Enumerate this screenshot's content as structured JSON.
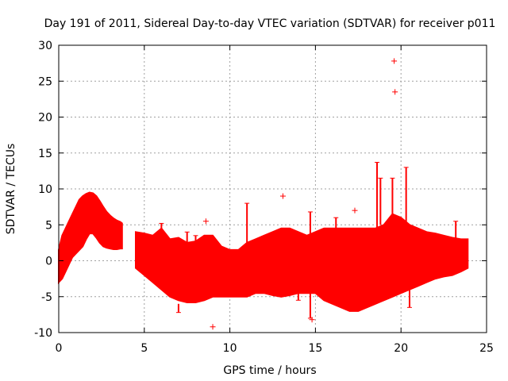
{
  "chart_data": {
    "type": "scatter",
    "title": "Day 191 of 2011, Sidereal Day-to-day VTEC variation (SDTVAR) for receiver p011",
    "xlabel": "GPS time / hours",
    "ylabel": "SDTVAR / TECUs",
    "xlim": [
      0,
      25
    ],
    "ylim": [
      -10,
      30
    ],
    "xticks": [
      0,
      5,
      10,
      15,
      20,
      25
    ],
    "yticks": [
      -10,
      -5,
      0,
      5,
      10,
      15,
      20,
      25,
      30
    ],
    "grid": true,
    "marker": "+",
    "color": "#ff0000",
    "envelope": {
      "description": "dense red band of observations: upper and lower bounds by hour",
      "segments": [
        {
          "x": [
            0.0,
            0.2,
            0.4,
            0.6,
            0.8,
            1.0,
            1.2,
            1.4,
            1.6,
            1.8,
            2.0,
            2.2,
            2.4,
            2.6,
            2.8,
            3.0,
            3.2,
            3.4,
            3.6,
            3.7
          ],
          "upper": [
            1.5,
            3.5,
            4.5,
            5.5,
            6.5,
            7.5,
            8.5,
            9.0,
            9.3,
            9.5,
            9.4,
            9.0,
            8.3,
            7.5,
            6.8,
            6.3,
            5.9,
            5.6,
            5.4,
            5.2
          ],
          "lower": [
            -3.0,
            -2.5,
            -1.5,
            -0.5,
            0.5,
            1.0,
            1.5,
            2.0,
            3.0,
            3.8,
            3.8,
            3.2,
            2.5,
            2.0,
            1.8,
            1.7,
            1.6,
            1.6,
            1.7,
            1.7
          ]
        },
        {
          "x": [
            4.5,
            5.0,
            5.5,
            6.0,
            6.5,
            7.0,
            7.5,
            8.0,
            8.5,
            9.0,
            9.5,
            10.0,
            10.5,
            11.0,
            11.5,
            12.0,
            12.5,
            13.0,
            13.5,
            14.0,
            14.5,
            15.0,
            15.5,
            16.0,
            16.5,
            17.0,
            17.5,
            18.0,
            18.5,
            19.0,
            19.5,
            20.0,
            20.5,
            21.0,
            21.5,
            22.0,
            22.5,
            23.0,
            23.5,
            23.9
          ],
          "upper": [
            4.0,
            3.8,
            3.5,
            4.5,
            3.0,
            3.2,
            2.5,
            2.7,
            3.5,
            3.5,
            2.0,
            1.5,
            1.5,
            2.5,
            3.0,
            3.5,
            4.0,
            4.5,
            4.5,
            4.0,
            3.5,
            4.0,
            4.5,
            4.5,
            4.5,
            4.5,
            4.5,
            4.5,
            4.5,
            5.0,
            6.5,
            6.0,
            5.0,
            4.5,
            4.0,
            3.8,
            3.5,
            3.2,
            3.0,
            3.0
          ],
          "lower": [
            -1.0,
            -2.0,
            -3.0,
            -4.0,
            -5.0,
            -5.5,
            -5.8,
            -5.8,
            -5.5,
            -5.0,
            -5.0,
            -5.0,
            -5.0,
            -5.0,
            -4.5,
            -4.5,
            -4.8,
            -5.0,
            -4.8,
            -4.5,
            -4.5,
            -4.5,
            -5.5,
            -6.0,
            -6.5,
            -7.0,
            -7.0,
            -6.5,
            -6.0,
            -5.5,
            -5.0,
            -4.5,
            -4.0,
            -3.5,
            -3.0,
            -2.5,
            -2.2,
            -2.0,
            -1.5,
            -1.0
          ]
        }
      ]
    },
    "spikes": [
      {
        "x": 6.0,
        "y1": 0.5,
        "y2": 5.2
      },
      {
        "x": 7.0,
        "y1": -6.0,
        "y2": -7.2
      },
      {
        "x": 7.5,
        "y1": 2.5,
        "y2": 4.0
      },
      {
        "x": 8.0,
        "y1": 2.5,
        "y2": 3.5
      },
      {
        "x": 11.0,
        "y1": 2.5,
        "y2": 8.0
      },
      {
        "x": 14.0,
        "y1": -4.5,
        "y2": -5.5
      },
      {
        "x": 14.7,
        "y1": 3.5,
        "y2": 6.8
      },
      {
        "x": 14.7,
        "y1": -4.5,
        "y2": -8.0
      },
      {
        "x": 16.2,
        "y1": 4.0,
        "y2": 6.0
      },
      {
        "x": 18.6,
        "y1": 4.5,
        "y2": 13.7
      },
      {
        "x": 18.8,
        "y1": 5.0,
        "y2": 11.5
      },
      {
        "x": 19.5,
        "y1": 6.0,
        "y2": 11.5
      },
      {
        "x": 20.3,
        "y1": 5.0,
        "y2": 13.0
      },
      {
        "x": 20.5,
        "y1": -4.0,
        "y2": -6.5
      },
      {
        "x": 23.2,
        "y1": 3.0,
        "y2": 5.5
      }
    ],
    "outliers": [
      {
        "x": 8.6,
        "y": 5.5
      },
      {
        "x": 9.0,
        "y": -9.2
      },
      {
        "x": 13.1,
        "y": 9.0
      },
      {
        "x": 14.8,
        "y": -8.2
      },
      {
        "x": 17.3,
        "y": 7.0
      },
      {
        "x": 19.6,
        "y": 27.8
      },
      {
        "x": 19.65,
        "y": 23.5
      }
    ]
  }
}
